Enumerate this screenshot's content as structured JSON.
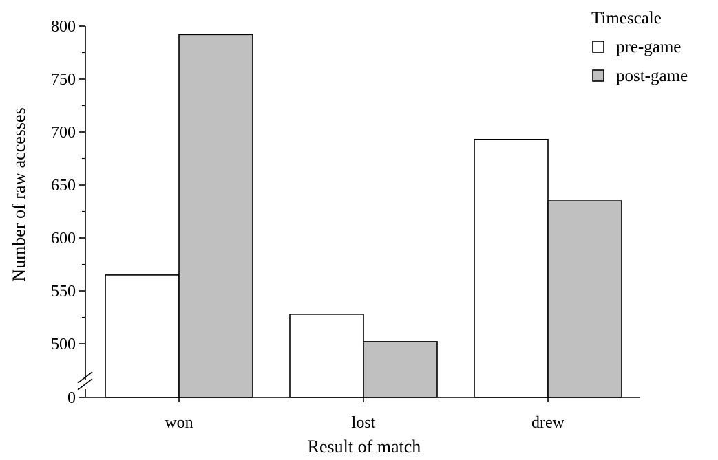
{
  "chart_data": {
    "type": "bar",
    "title": "",
    "xlabel": "Result of match",
    "ylabel": "Number of raw accesses",
    "categories": [
      "won",
      "lost",
      "drew"
    ],
    "series": [
      {
        "name": "pre-game",
        "values": [
          565,
          528,
          693
        ],
        "color": "#ffffff"
      },
      {
        "name": "post-game",
        "values": [
          792,
          502,
          635
        ],
        "color": "#c0c0c0"
      }
    ],
    "ylim": [
      0,
      800
    ],
    "y_axis_break": {
      "from": 0,
      "to": 475
    },
    "yticks": [
      0,
      500,
      550,
      600,
      650,
      700,
      750,
      800
    ],
    "legend": {
      "title": "Timescale",
      "position": "top-right"
    },
    "grid": false
  }
}
